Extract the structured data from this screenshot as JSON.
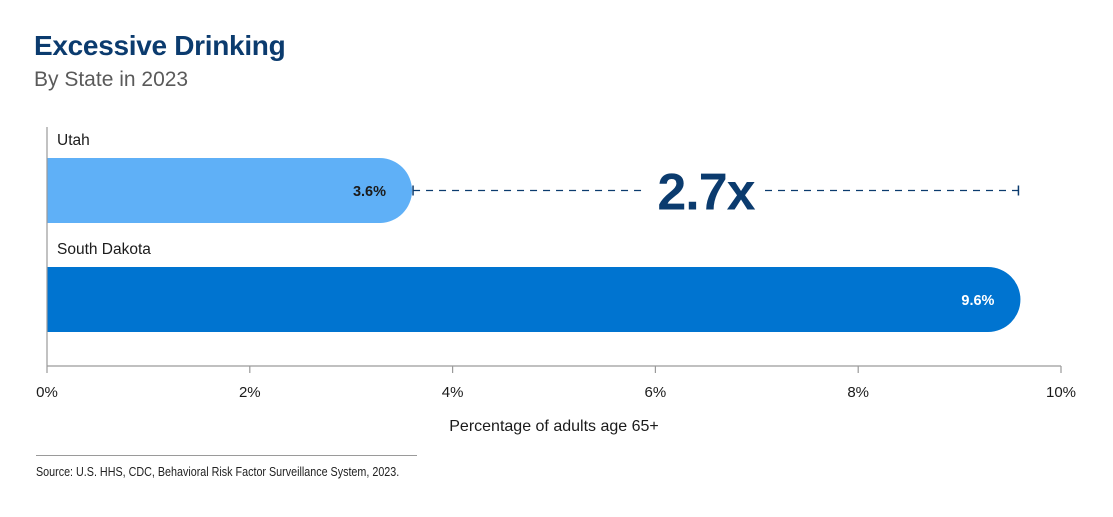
{
  "title": "Excessive Drinking",
  "subtitle": "By State in 2023",
  "source": "Source: U.S. HHS, CDC, Behavioral Risk Factor Surveillance System, 2023.",
  "colors": {
    "title": "#0b3b6e",
    "utah_bar": "#5fb0f7",
    "south_dakota_bar": "#0074d0",
    "annotation": "#0b3b6e",
    "axis": "#9a9a9a"
  },
  "chart_data": {
    "type": "bar",
    "orientation": "horizontal",
    "categories": [
      "Utah",
      "South Dakota"
    ],
    "values": [
      3.6,
      9.6
    ],
    "value_labels": [
      "3.6%",
      "9.6%"
    ],
    "xlabel": "Percentage of adults age 65+",
    "xlim": [
      0,
      10
    ],
    "xticks": [
      0,
      2,
      4,
      6,
      8,
      10
    ],
    "xtick_labels": [
      "0%",
      "2%",
      "4%",
      "6%",
      "8%",
      "10%"
    ],
    "annotation": {
      "text": "2.7x",
      "from": 3.6,
      "to": 9.6,
      "style": "dashed"
    },
    "grid": false
  }
}
